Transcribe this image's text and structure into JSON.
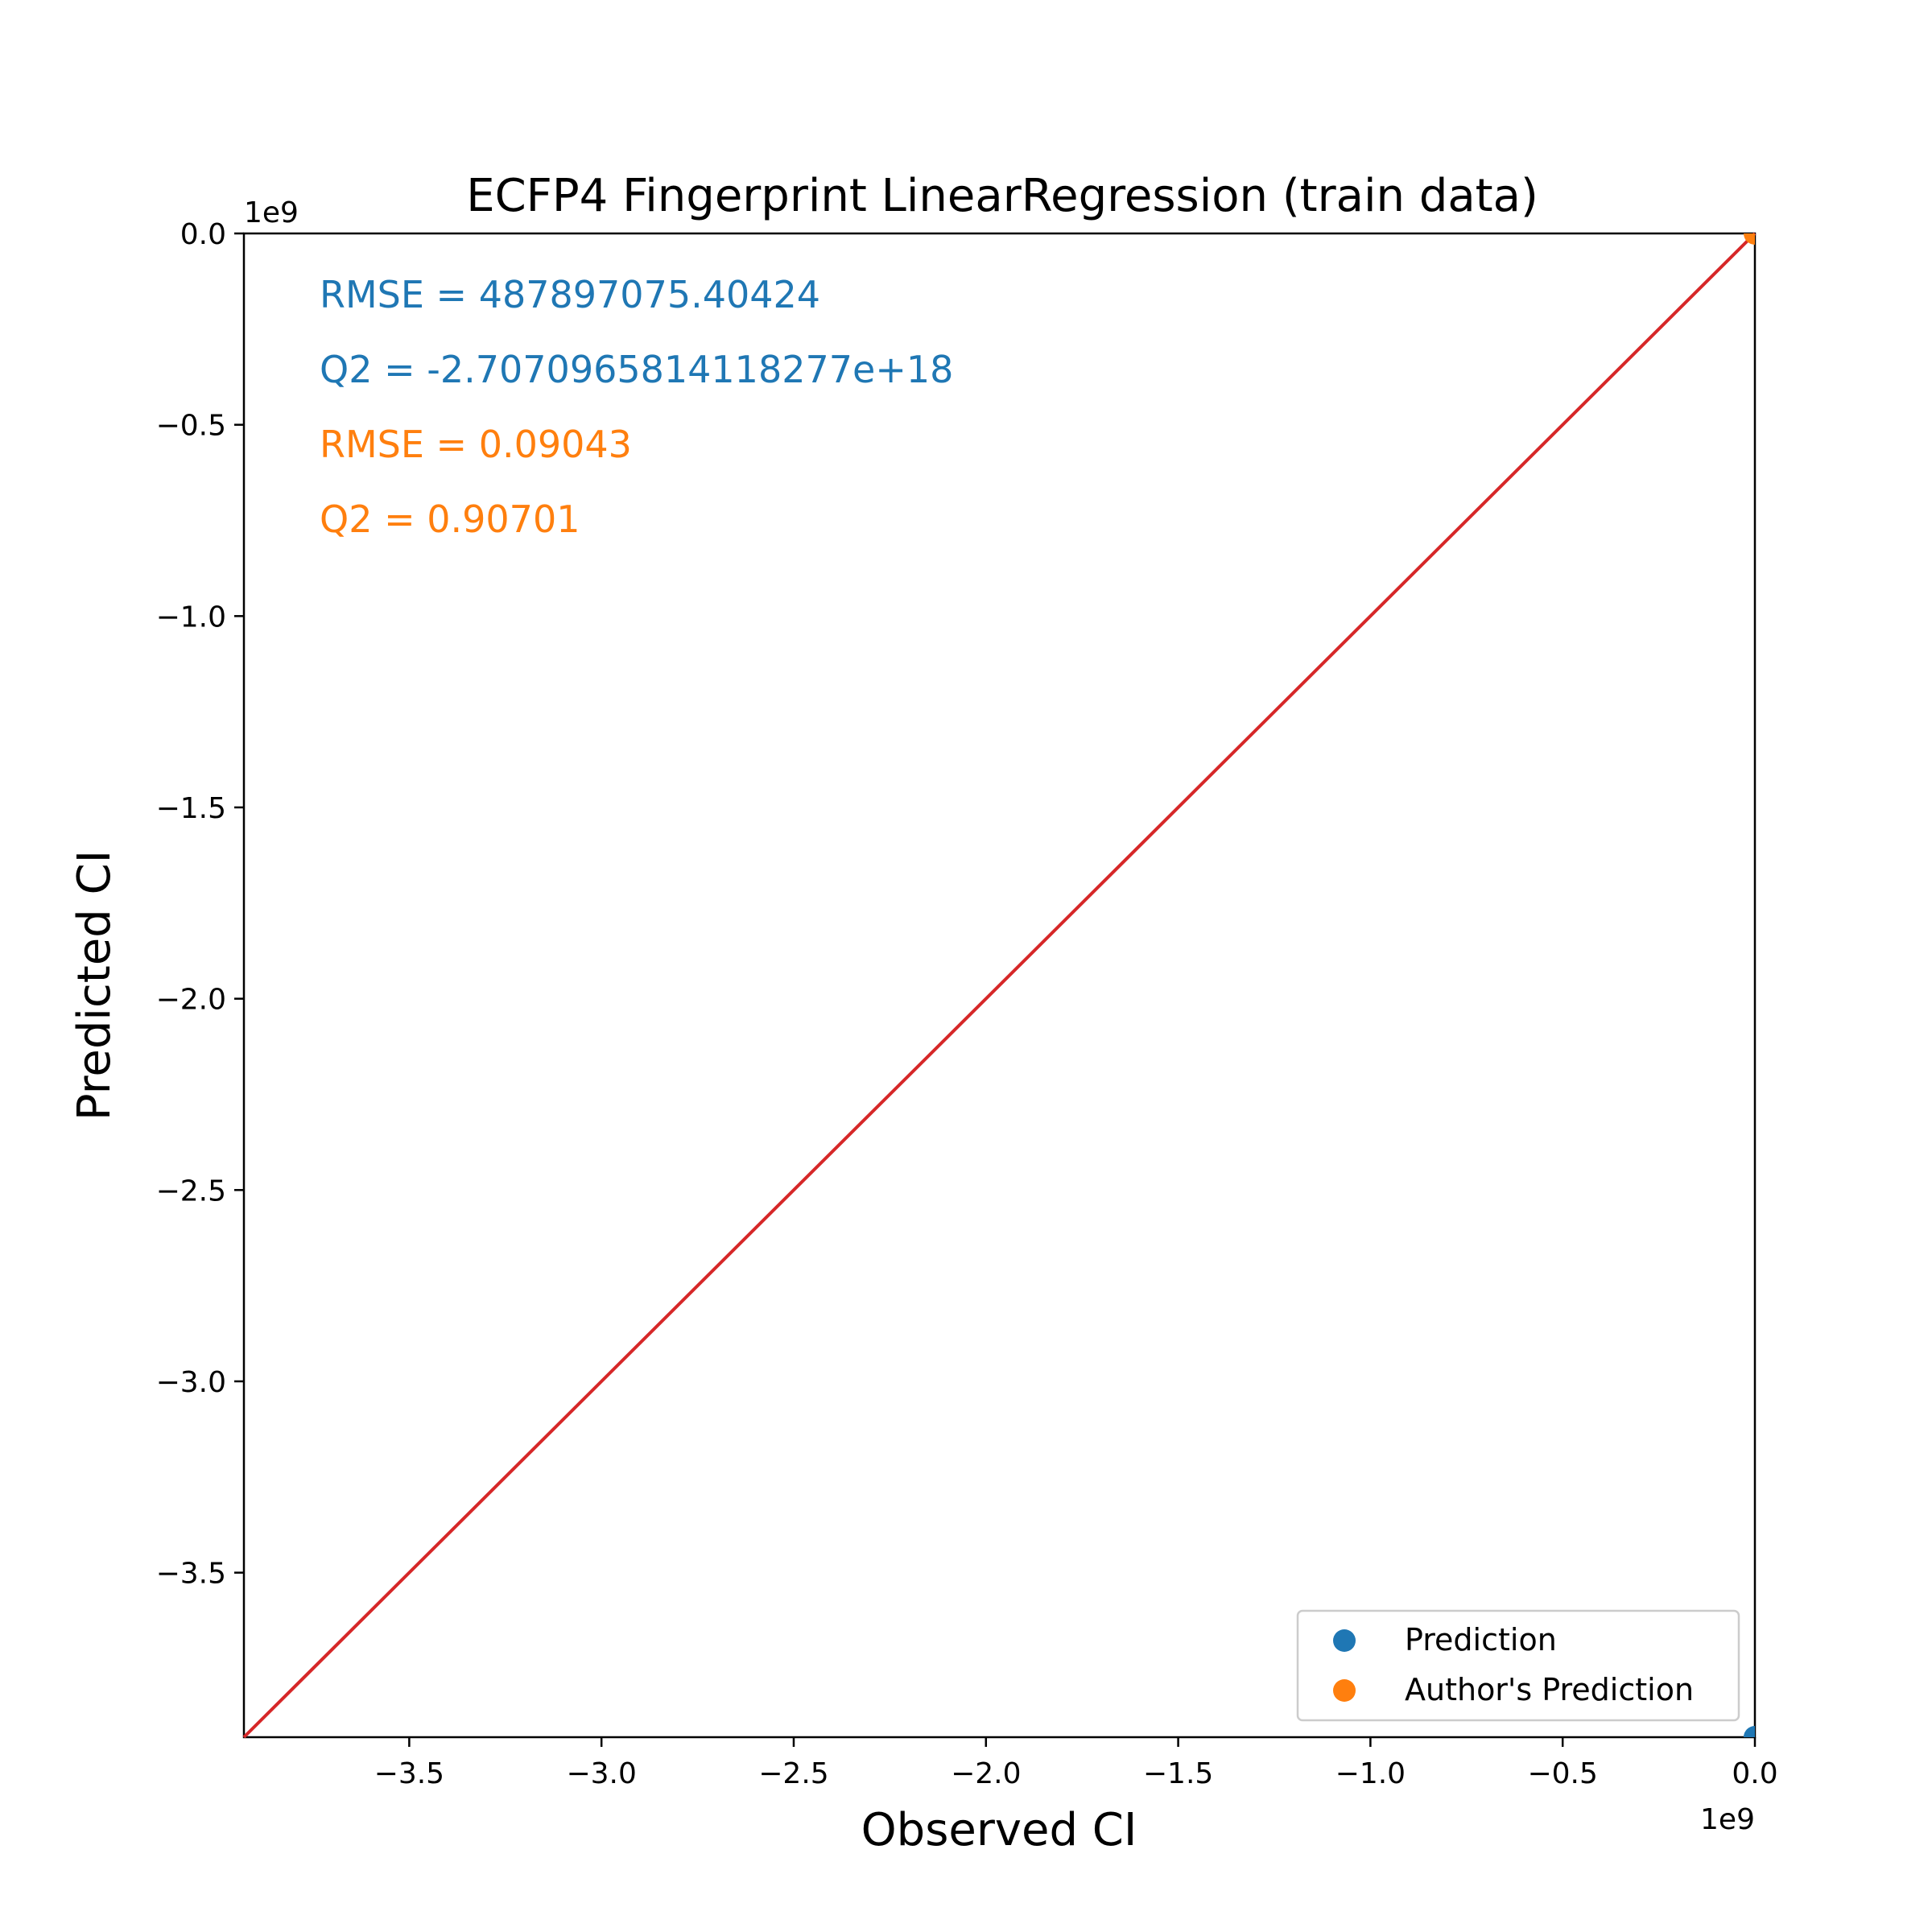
{
  "colors": {
    "prediction": "#1f77b4",
    "author_prediction": "#ff7f0e",
    "identity_line": "#d62728",
    "axes": "#000000",
    "legend_border": "#cccccc"
  },
  "chart_data": {
    "type": "scatter",
    "title": "ECFP4 Fingerprint LinearRegression (train data)",
    "xlabel": "Observed CI",
    "ylabel": "Predicted CI",
    "x_offset_label": "1e9",
    "y_offset_label": "1e9",
    "xlim": [
      -3.93,
      0.0
    ],
    "ylim": [
      -3.93,
      0.0
    ],
    "scale_factor": 1000000000.0,
    "x_ticks": [
      -3.5,
      -3.0,
      -2.5,
      -2.0,
      -1.5,
      -1.0,
      -0.5,
      0.0
    ],
    "x_tick_labels": [
      "−3.5",
      "−3.0",
      "−2.5",
      "−2.0",
      "−1.5",
      "−1.0",
      "−0.5",
      "0.0"
    ],
    "y_ticks": [
      0.0,
      -0.5,
      -1.0,
      -1.5,
      -2.0,
      -2.5,
      -3.0,
      -3.5
    ],
    "y_tick_labels": [
      "0.0",
      "−0.5",
      "−1.0",
      "−1.5",
      "−2.0",
      "−2.5",
      "−3.0",
      "−3.5"
    ],
    "grid": false,
    "legend_position": "lower-right",
    "series": [
      {
        "name": "Prediction",
        "color": "#1f77b4",
        "points": [
          [
            0.0,
            -3.93
          ]
        ]
      },
      {
        "name": "Author's Prediction",
        "color": "#ff7f0e",
        "points": [
          [
            0.0,
            0.0
          ]
        ]
      }
    ],
    "identity_line": {
      "from": [
        -3.93,
        -3.93
      ],
      "to": [
        0.0,
        0.0
      ],
      "color": "#d62728"
    },
    "annotations": [
      {
        "text": "RMSE = 487897075.40424",
        "color": "#1f77b4"
      },
      {
        "text": "Q2 = -2.7070965814118277e+18",
        "color": "#1f77b4"
      },
      {
        "text": "RMSE = 0.09043",
        "color": "#ff7f0e"
      },
      {
        "text": "Q2 = 0.90701",
        "color": "#ff7f0e"
      }
    ]
  }
}
